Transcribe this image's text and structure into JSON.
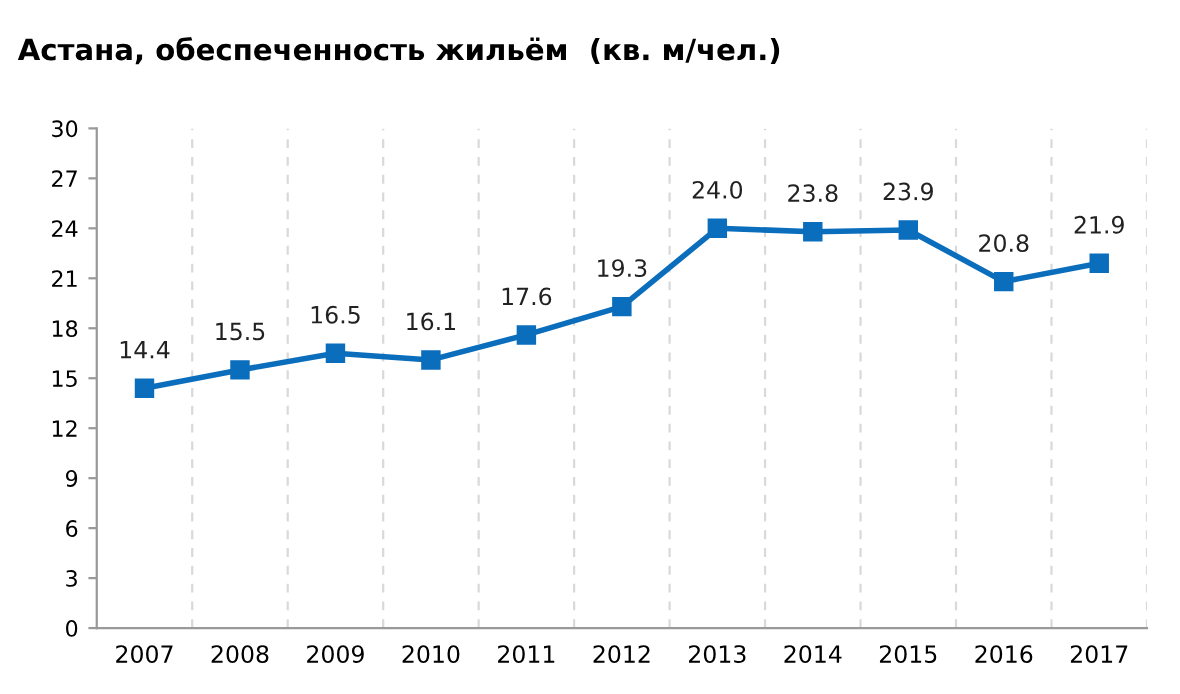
{
  "chart_data": {
    "type": "line",
    "title": "Астана, обеспеченность жильём  (кв. м/чел.)",
    "categories": [
      "2007",
      "2008",
      "2009",
      "2010",
      "2011",
      "2012",
      "2013",
      "2014",
      "2015",
      "2016",
      "2017"
    ],
    "series": [
      {
        "color": "#0a6ebd",
        "values": [
          14.4,
          15.5,
          16.5,
          16.1,
          17.6,
          19.3,
          24.0,
          23.8,
          23.9,
          20.8,
          21.9
        ],
        "value_labels": [
          "14.4",
          "15.5",
          "16.5",
          "16.1",
          "17.6",
          "19.3",
          "24.0",
          "23.8",
          "23.9",
          "20.8",
          "21.9"
        ]
      }
    ],
    "ylim": [
      0,
      30
    ],
    "yticks": [
      0,
      3,
      6,
      9,
      12,
      15,
      18,
      21,
      24,
      27,
      30
    ],
    "grid": "x",
    "marker": "square",
    "line_style": "solid",
    "legend": false
  }
}
